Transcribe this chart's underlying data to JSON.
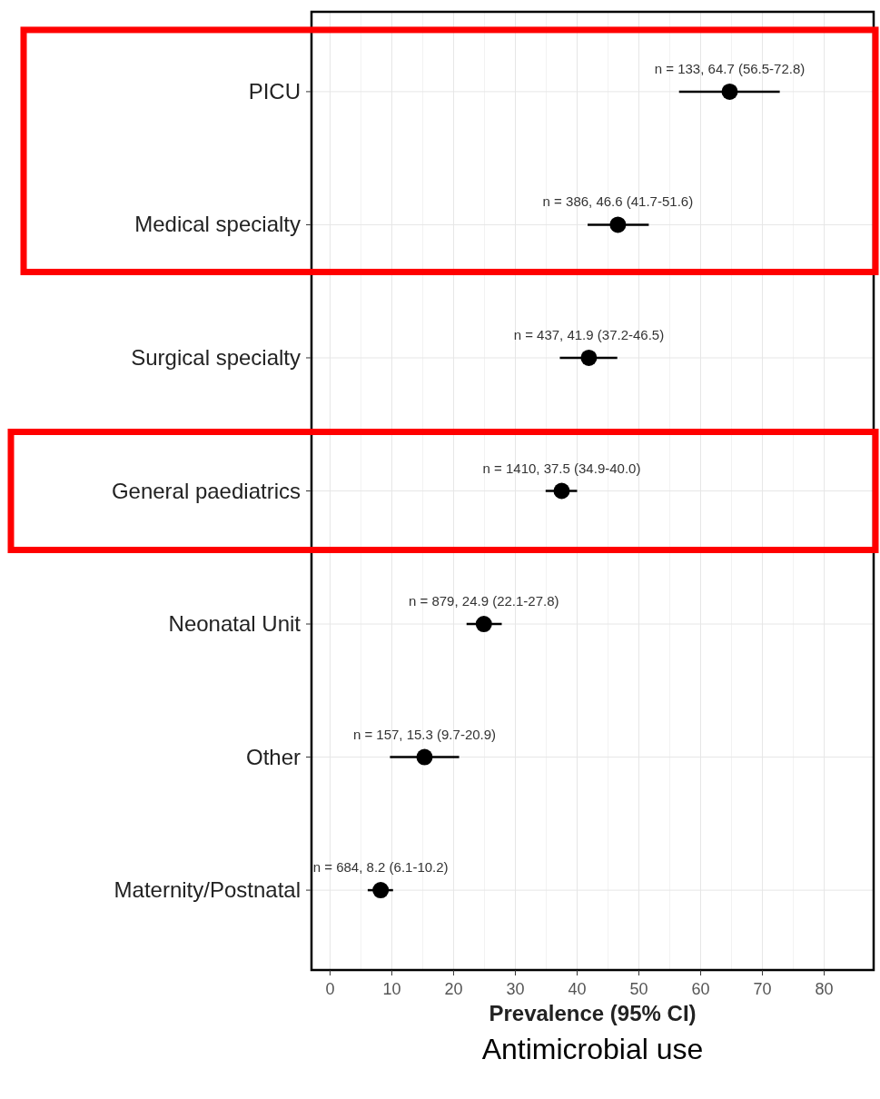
{
  "chart_data": {
    "type": "scatter",
    "orientation": "horizontal",
    "xlabel": "Prevalence (95% CI)",
    "annotations": [
      "Antimicrobial use"
    ],
    "categories": [
      "PICU",
      "Medical specialty",
      "Surgical specialty",
      "General paediatrics",
      "Neonatal Unit",
      "Other",
      "Maternity/Postnatal"
    ],
    "values": [
      64.7,
      46.6,
      41.9,
      37.5,
      24.9,
      15.3,
      8.2
    ],
    "errors": [
      [
        56.5,
        72.8
      ],
      [
        41.7,
        51.6
      ],
      [
        37.2,
        46.5
      ],
      [
        34.9,
        40.0
      ],
      [
        22.1,
        27.8
      ],
      [
        9.7,
        20.9
      ],
      [
        6.1,
        10.2
      ]
    ],
    "value_labels": [
      "n = 133, 64.7 (56.5-72.8)",
      "n = 386, 46.6 (41.7-51.6)",
      "n = 437, 41.9 (37.2-46.5)",
      "n = 1410, 37.5 (34.9-40.0)",
      "n = 879, 24.9 (22.1-27.8)",
      "n = 157, 15.3 (9.7-20.9)",
      "n = 684, 8.2 (6.1-10.2)"
    ],
    "color": "#000000",
    "marker": "circle",
    "grid": true,
    "xlim": [
      -3,
      88
    ],
    "xticks": [
      0,
      10,
      20,
      30,
      40,
      50,
      60,
      70,
      80
    ]
  }
}
